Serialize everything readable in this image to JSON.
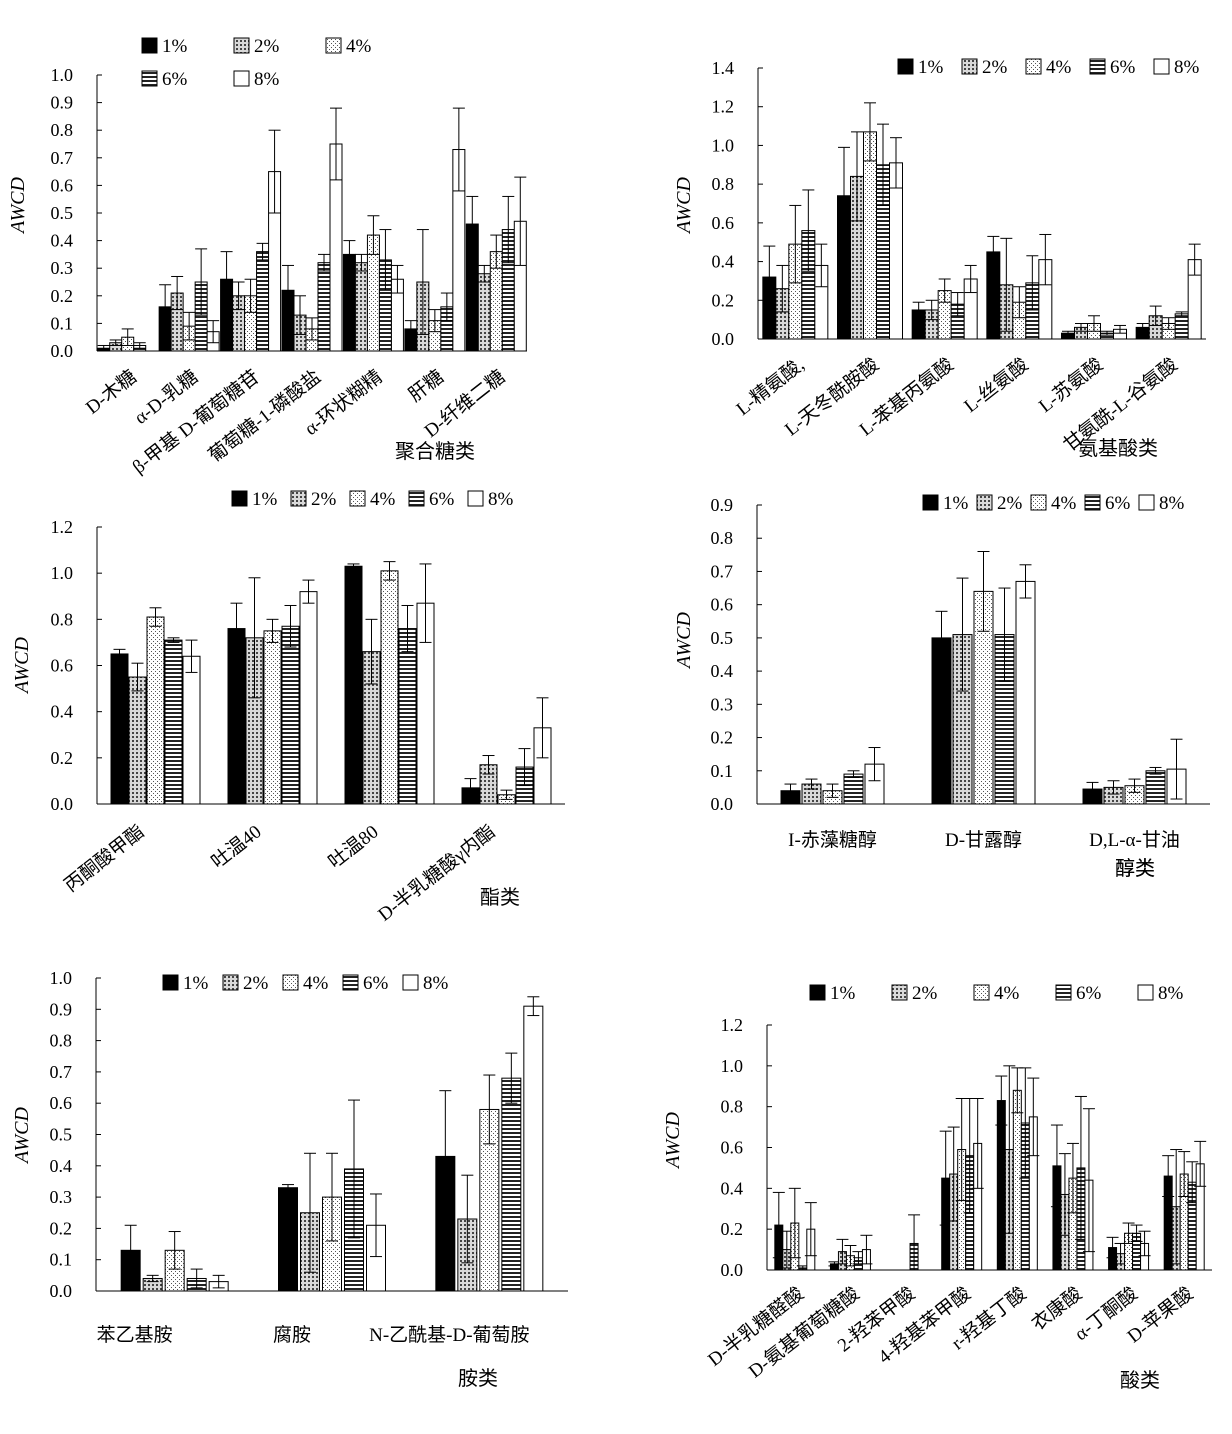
{
  "series": [
    {
      "name": "1%",
      "pattern": "solid"
    },
    {
      "name": "2%",
      "pattern": "dots"
    },
    {
      "name": "4%",
      "pattern": "fine-dots"
    },
    {
      "name": "6%",
      "pattern": "horizontal-stripes"
    },
    {
      "name": "8%",
      "pattern": "empty"
    }
  ],
  "colors": {
    "ink": "#000000",
    "background": "#ffffff"
  },
  "chart_data": [
    {
      "type": "bar",
      "ylabel": "AWCD",
      "ylim": [
        0,
        1.0
      ],
      "yticks": [
        "0.0",
        "0.1",
        "0.2",
        "0.3",
        "0.4",
        "0.5",
        "0.6",
        "0.7",
        "0.8",
        "0.9",
        "1.0"
      ],
      "group_label": "聚合糖类",
      "legend_position": "top-left",
      "categories": [
        "D-木糖",
        "α-D-乳糖",
        "β-甲基 D-葡萄糖苷",
        "葡萄糖-1-磷酸盐",
        "α-环状糊精",
        "肝糖",
        "D-纤维二糖"
      ],
      "series": [
        {
          "name": "1%",
          "values": [
            0.01,
            0.16,
            0.26,
            0.22,
            0.35,
            0.08,
            0.46
          ],
          "errors": [
            0.01,
            0.08,
            0.1,
            0.09,
            0.05,
            0.03,
            0.1
          ]
        },
        {
          "name": "2%",
          "values": [
            0.03,
            0.21,
            0.2,
            0.13,
            0.32,
            0.25,
            0.28
          ],
          "errors": [
            0.01,
            0.06,
            0.05,
            0.07,
            0.03,
            0.19,
            0.03
          ]
        },
        {
          "name": "4%",
          "values": [
            0.05,
            0.09,
            0.2,
            0.08,
            0.42,
            0.11,
            0.36
          ],
          "errors": [
            0.03,
            0.05,
            0.06,
            0.04,
            0.07,
            0.04,
            0.06
          ]
        },
        {
          "name": "6%",
          "values": [
            0.02,
            0.25,
            0.36,
            0.32,
            0.33,
            0.16,
            0.44
          ],
          "errors": [
            0.01,
            0.12,
            0.03,
            0.03,
            0.11,
            0.05,
            0.12
          ]
        },
        {
          "name": "8%",
          "values": [
            0.0,
            0.07,
            0.65,
            0.75,
            0.26,
            0.73,
            0.47
          ],
          "errors": [
            0.0,
            0.04,
            0.15,
            0.13,
            0.05,
            0.15,
            0.16
          ]
        }
      ]
    },
    {
      "type": "bar",
      "ylabel": "AWCD",
      "ylim": [
        0,
        1.4
      ],
      "yticks": [
        "0.0",
        "0.2",
        "0.4",
        "0.6",
        "0.8",
        "1.0",
        "1.2",
        "1.4"
      ],
      "group_label": "氨基酸类",
      "legend_position": "top-right",
      "categories": [
        "L-精氨酸,",
        "L-天冬酰胺酸",
        "L-苯基丙氨酸",
        "L-丝氨酸",
        "L-苏氨酸",
        "甘氨酰-L-谷氨酸"
      ],
      "series": [
        {
          "name": "1%",
          "values": [
            0.32,
            0.74,
            0.15,
            0.45,
            0.03,
            0.06
          ],
          "errors": [
            0.16,
            0.25,
            0.04,
            0.08,
            0.01,
            0.02
          ]
        },
        {
          "name": "2%",
          "values": [
            0.26,
            0.84,
            0.15,
            0.28,
            0.06,
            0.12
          ],
          "errors": [
            0.12,
            0.23,
            0.05,
            0.24,
            0.02,
            0.05
          ]
        },
        {
          "name": "4%",
          "values": [
            0.49,
            1.07,
            0.25,
            0.19,
            0.08,
            0.08
          ],
          "errors": [
            0.2,
            0.15,
            0.06,
            0.08,
            0.04,
            0.03
          ]
        },
        {
          "name": "6%",
          "values": [
            0.56,
            0.9,
            0.18,
            0.29,
            0.03,
            0.13
          ],
          "errors": [
            0.21,
            0.21,
            0.06,
            0.14,
            0.01,
            0.01
          ]
        },
        {
          "name": "8%",
          "values": [
            0.38,
            0.91,
            0.31,
            0.41,
            0.05,
            0.41
          ],
          "errors": [
            0.11,
            0.13,
            0.07,
            0.13,
            0.02,
            0.08
          ]
        }
      ]
    },
    {
      "type": "bar",
      "ylabel": "AWCD",
      "ylim": [
        0,
        1.2
      ],
      "yticks": [
        "0.0",
        "0.2",
        "0.4",
        "0.6",
        "0.8",
        "1.0",
        "1.2"
      ],
      "group_label": "酯类",
      "legend_position": "top",
      "categories": [
        "丙酮酸甲酯",
        "吐温40",
        "吐温80",
        "D-半乳糖酸γ内酯"
      ],
      "series": [
        {
          "name": "1%",
          "values": [
            0.65,
            0.76,
            1.03,
            0.07
          ],
          "errors": [
            0.02,
            0.11,
            0.01,
            0.04
          ]
        },
        {
          "name": "2%",
          "values": [
            0.55,
            0.72,
            0.66,
            0.17
          ],
          "errors": [
            0.06,
            0.26,
            0.14,
            0.04
          ]
        },
        {
          "name": "4%",
          "values": [
            0.81,
            0.75,
            1.01,
            0.04
          ],
          "errors": [
            0.04,
            0.05,
            0.04,
            0.02
          ]
        },
        {
          "name": "6%",
          "values": [
            0.71,
            0.77,
            0.76,
            0.16
          ],
          "errors": [
            0.01,
            0.09,
            0.1,
            0.08
          ]
        },
        {
          "name": "8%",
          "values": [
            0.64,
            0.92,
            0.87,
            0.33
          ],
          "errors": [
            0.07,
            0.05,
            0.17,
            0.13
          ]
        }
      ]
    },
    {
      "type": "bar",
      "ylabel": "AWCD",
      "ylim": [
        0,
        0.9
      ],
      "yticks": [
        "0.0",
        "0.1",
        "0.2",
        "0.3",
        "0.4",
        "0.5",
        "0.6",
        "0.7",
        "0.8",
        "0.9"
      ],
      "group_label": "醇类",
      "legend_position": "top",
      "categories": [
        "I-赤藻糖醇",
        "D-甘露醇",
        "D,L-α-甘油"
      ],
      "series": [
        {
          "name": "1%",
          "values": [
            0.04,
            0.5,
            0.045
          ],
          "errors": [
            0.02,
            0.08,
            0.02
          ]
        },
        {
          "name": "2%",
          "values": [
            0.06,
            0.51,
            0.05
          ],
          "errors": [
            0.015,
            0.17,
            0.02
          ]
        },
        {
          "name": "4%",
          "values": [
            0.04,
            0.64,
            0.055
          ],
          "errors": [
            0.02,
            0.12,
            0.02
          ]
        },
        {
          "name": "6%",
          "values": [
            0.09,
            0.51,
            0.1
          ],
          "errors": [
            0.01,
            0.14,
            0.01
          ]
        },
        {
          "name": "8%",
          "values": [
            0.12,
            0.67,
            0.105
          ],
          "errors": [
            0.05,
            0.05,
            0.09
          ]
        }
      ]
    },
    {
      "type": "bar",
      "ylabel": "AWCD",
      "ylim": [
        0,
        1.0
      ],
      "yticks": [
        "0.0",
        "0.1",
        "0.2",
        "0.3",
        "0.4",
        "0.5",
        "0.6",
        "0.7",
        "0.8",
        "0.9",
        "1.0"
      ],
      "group_label": "胺类",
      "legend_position": "top",
      "categories": [
        "苯乙基胺",
        "腐胺",
        "N-乙酰基-D-葡萄胺"
      ],
      "series": [
        {
          "name": "1%",
          "values": [
            0.13,
            0.33,
            0.43
          ],
          "errors": [
            0.08,
            0.01,
            0.21
          ]
        },
        {
          "name": "2%",
          "values": [
            0.04,
            0.25,
            0.23
          ],
          "errors": [
            0.01,
            0.19,
            0.14
          ]
        },
        {
          "name": "4%",
          "values": [
            0.13,
            0.3,
            0.58
          ],
          "errors": [
            0.06,
            0.14,
            0.11
          ]
        },
        {
          "name": "6%",
          "values": [
            0.04,
            0.39,
            0.68
          ],
          "errors": [
            0.03,
            0.22,
            0.08
          ]
        },
        {
          "name": "8%",
          "values": [
            0.03,
            0.21,
            0.91
          ],
          "errors": [
            0.02,
            0.1,
            0.03
          ]
        }
      ]
    },
    {
      "type": "bar",
      "ylabel": "AWCD",
      "ylim": [
        0,
        1.2
      ],
      "yticks": [
        "0.0",
        "0.2",
        "0.4",
        "0.6",
        "0.8",
        "1.0",
        "1.2"
      ],
      "group_label": "酸类",
      "legend_position": "top",
      "categories": [
        "D-半乳糖醛酸",
        "D-氨基葡萄糖酸",
        "2-羟苯甲酸",
        "4-羟基苯甲酸",
        "r-羟基丁酸",
        "衣康酸",
        "α-丁酮酸",
        "D-苹果酸"
      ],
      "series": [
        {
          "name": "1%",
          "values": [
            0.22,
            0.03,
            0.0,
            0.45,
            0.83,
            0.51,
            0.11,
            0.46
          ],
          "errors": [
            0.16,
            0.01,
            0.0,
            0.23,
            0.12,
            0.2,
            0.05,
            0.1
          ]
        },
        {
          "name": "2%",
          "values": [
            0.1,
            0.09,
            0.0,
            0.47,
            0.59,
            0.37,
            0.08,
            0.31
          ],
          "errors": [
            0.09,
            0.06,
            0.0,
            0.23,
            0.41,
            0.2,
            0.05,
            0.28
          ]
        },
        {
          "name": "4%",
          "values": [
            0.23,
            0.07,
            0.0,
            0.59,
            0.88,
            0.45,
            0.18,
            0.47
          ],
          "errors": [
            0.17,
            0.05,
            0.0,
            0.25,
            0.11,
            0.17,
            0.05,
            0.11
          ]
        },
        {
          "name": "6%",
          "values": [
            0.01,
            0.06,
            0.13,
            0.56,
            0.72,
            0.5,
            0.18,
            0.43
          ],
          "errors": [
            0.01,
            0.03,
            0.14,
            0.28,
            0.27,
            0.35,
            0.04,
            0.1
          ]
        },
        {
          "name": "8%",
          "values": [
            0.2,
            0.1,
            0.0,
            0.62,
            0.75,
            0.44,
            0.13,
            0.52
          ],
          "errors": [
            0.13,
            0.07,
            0.0,
            0.22,
            0.19,
            0.35,
            0.06,
            0.11
          ]
        }
      ]
    }
  ],
  "continuation_labels": {
    "panel4": "醇类"
  }
}
